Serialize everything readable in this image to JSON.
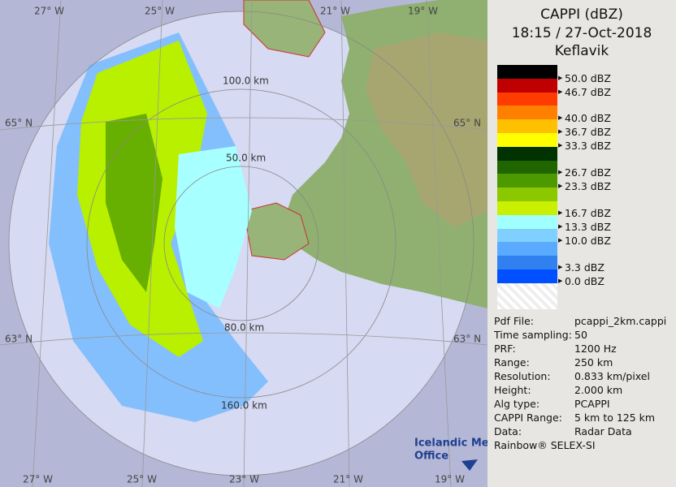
{
  "title": [
    "CAPPI (dBZ)",
    "18:15 / 27-Oct-2018",
    "Keflavik"
  ],
  "legend": [
    "50.0 dBZ",
    "46.7 dBZ",
    "40.0 dBZ",
    "36.7 dBZ",
    "33.3 dBZ",
    "26.7 dBZ",
    "23.3 dBZ",
    "16.7 dBZ",
    "13.3 dBZ",
    "10.0 dBZ",
    "3.3 dBZ",
    "0.0 dBZ"
  ],
  "info": [
    [
      "Pdf File:",
      "pcappi_2km.cappi"
    ],
    [
      "Time sampling:",
      "50"
    ],
    [
      "PRF:",
      "1200 Hz"
    ],
    [
      "Range:",
      "250 km"
    ],
    [
      "Resolution:",
      "0.833 km/pixel"
    ],
    [
      "Height:",
      "2.000 km"
    ],
    [
      "Alg type:",
      "PCAPPI"
    ],
    [
      "CAPPI Range:",
      "5 km to 125 km"
    ],
    [
      "Data:",
      "Radar Data"
    ]
  ],
  "footer": "Rainbow® SELEX-SI",
  "map": {
    "top_lon": [
      "27° W",
      "25° W",
      "21° W",
      "19° W"
    ],
    "bottom_lon": [
      "27° W",
      "25° W",
      "23° W",
      "21° W",
      "19° W"
    ],
    "left_lat": [
      "65° N",
      "63° N"
    ],
    "right_lat": [
      "65° N",
      "63° N"
    ],
    "ranges": [
      "100.0 km",
      "50.0 km",
      "80.0 km",
      "160.0 km"
    ],
    "logo": [
      "Icelandic Met",
      "Office"
    ]
  }
}
